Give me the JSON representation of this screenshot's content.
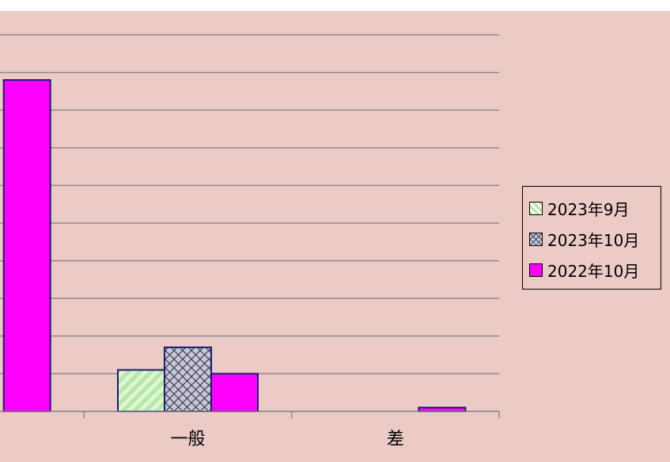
{
  "chart_data": {
    "type": "bar",
    "title": "",
    "xlabel": "",
    "ylabel": "",
    "categories": [
      "",
      "一般",
      "差"
    ],
    "series": [
      {
        "name": "2023年9月",
        "values": [
          null,
          1.1,
          0
        ],
        "fill": "stripe-green"
      },
      {
        "name": "2023年10月",
        "values": [
          null,
          1.7,
          0
        ],
        "fill": "crosshatch-gray"
      },
      {
        "name": "2022年10月",
        "values": [
          8.8,
          1.0,
          0.1
        ],
        "fill": "#ff00ff"
      }
    ],
    "ylim": [
      0,
      10
    ],
    "grid": true,
    "legend_position": "right"
  },
  "colors": {
    "background": "#eccac6",
    "magenta": "#ff00ff",
    "stripe_green": "#b6e8a6",
    "crosshatch": "#b8b8c4",
    "bar_border": "#1a1a6e"
  }
}
